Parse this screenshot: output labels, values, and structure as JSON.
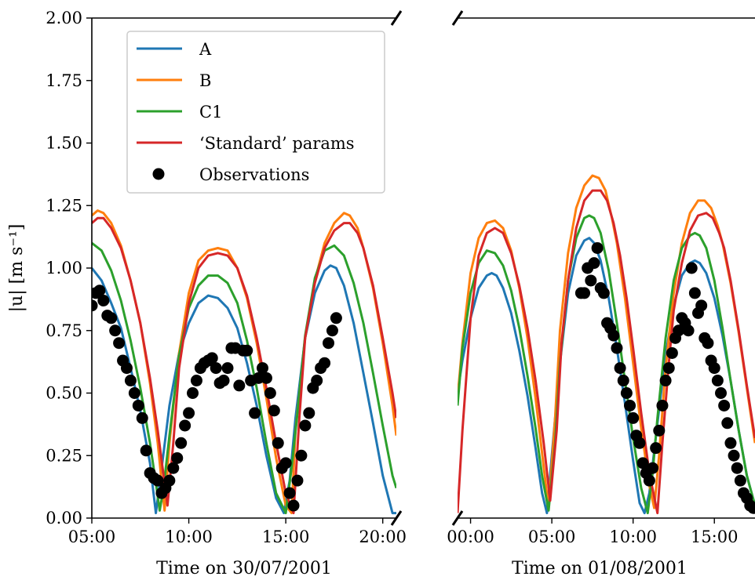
{
  "chart_data": [
    {
      "type": "line",
      "xlabel": "Time on 30/07/2001",
      "ylabel": "|u| [m s⁻¹]",
      "x_unit": "hours",
      "xlim": [
        5.0,
        20.7
      ],
      "ylim": [
        0.0,
        2.0
      ],
      "xticks": [
        5,
        10,
        15,
        20
      ],
      "xtick_labels": [
        "05:00",
        "10:00",
        "15:00",
        "20:00"
      ],
      "yticks": [
        0,
        0.25,
        0.5,
        0.75,
        1.0,
        1.25,
        1.5,
        1.75,
        2.0
      ],
      "ytick_labels": [
        "0.00",
        "0.25",
        "0.50",
        "0.75",
        "1.00",
        "1.25",
        "1.50",
        "1.75",
        "2.00"
      ],
      "grid": false,
      "legend": "top-left",
      "series": [
        {
          "name": "A",
          "color": "#1f77b4",
          "x": [
            5.0,
            5.5,
            6.0,
            6.5,
            7.0,
            7.5,
            8.0,
            8.3,
            8.6,
            9.0,
            9.5,
            10.0,
            10.5,
            11.0,
            11.5,
            12.0,
            12.5,
            13.0,
            13.5,
            14.0,
            14.5,
            14.9,
            15.2,
            15.5,
            16.0,
            16.5,
            17.0,
            17.3,
            17.6,
            18.0,
            18.5,
            19.0,
            19.5,
            20.0,
            20.5,
            20.7
          ],
          "y": [
            1.0,
            0.95,
            0.86,
            0.76,
            0.6,
            0.43,
            0.22,
            0.02,
            0.2,
            0.45,
            0.66,
            0.78,
            0.86,
            0.89,
            0.88,
            0.84,
            0.76,
            0.62,
            0.45,
            0.25,
            0.08,
            0.02,
            0.15,
            0.4,
            0.72,
            0.9,
            0.99,
            1.01,
            1.0,
            0.93,
            0.78,
            0.58,
            0.38,
            0.17,
            0.02,
            0.02
          ]
        },
        {
          "name": "B",
          "color": "#ff7f0e",
          "x": [
            5.0,
            5.3,
            5.6,
            6.0,
            6.5,
            7.0,
            7.5,
            8.0,
            8.4,
            8.75,
            9.0,
            9.5,
            10.0,
            10.5,
            11.0,
            11.5,
            12.0,
            12.5,
            13.0,
            13.5,
            14.0,
            14.5,
            15.0,
            15.3,
            15.5,
            16.0,
            16.5,
            17.0,
            17.5,
            18.0,
            18.3,
            18.7,
            19.0,
            19.5,
            20.0,
            20.5,
            20.7
          ],
          "y": [
            1.21,
            1.23,
            1.22,
            1.18,
            1.09,
            0.95,
            0.78,
            0.54,
            0.3,
            0.03,
            0.3,
            0.66,
            0.9,
            1.03,
            1.07,
            1.08,
            1.07,
            1.0,
            0.88,
            0.7,
            0.48,
            0.24,
            0.05,
            0.02,
            0.35,
            0.72,
            0.95,
            1.1,
            1.18,
            1.22,
            1.21,
            1.16,
            1.08,
            0.92,
            0.7,
            0.45,
            0.33
          ]
        },
        {
          "name": "C1",
          "color": "#2ca02c",
          "x": [
            5.0,
            5.5,
            6.0,
            6.5,
            7.0,
            7.5,
            8.0,
            8.3,
            8.5,
            8.7,
            9.0,
            9.5,
            10.0,
            10.5,
            11.0,
            11.5,
            12.0,
            12.5,
            13.0,
            13.5,
            14.0,
            14.5,
            15.0,
            15.3,
            15.6,
            16.0,
            16.5,
            17.0,
            17.5,
            18.0,
            18.5,
            19.0,
            19.5,
            20.0,
            20.5,
            20.7
          ],
          "y": [
            1.1,
            1.07,
            0.99,
            0.87,
            0.71,
            0.52,
            0.3,
            0.14,
            0.03,
            0.12,
            0.33,
            0.65,
            0.84,
            0.93,
            0.97,
            0.97,
            0.94,
            0.86,
            0.71,
            0.52,
            0.3,
            0.1,
            0.02,
            0.2,
            0.42,
            0.73,
            0.96,
            1.07,
            1.09,
            1.05,
            0.94,
            0.78,
            0.58,
            0.37,
            0.17,
            0.12
          ]
        },
        {
          "name": "‘Standard’ params",
          "color": "#d62728",
          "x": [
            5.0,
            5.3,
            5.6,
            6.0,
            6.5,
            7.0,
            7.5,
            8.0,
            8.4,
            8.9,
            9.2,
            9.5,
            10.0,
            10.5,
            11.0,
            11.5,
            12.0,
            12.5,
            13.0,
            13.5,
            14.0,
            14.5,
            15.0,
            15.4,
            15.7,
            16.0,
            16.5,
            17.0,
            17.5,
            18.0,
            18.3,
            18.7,
            19.0,
            19.5,
            20.0,
            20.5,
            20.7
          ],
          "y": [
            1.18,
            1.2,
            1.2,
            1.16,
            1.08,
            0.95,
            0.78,
            0.56,
            0.35,
            0.05,
            0.3,
            0.6,
            0.86,
            1.0,
            1.05,
            1.06,
            1.05,
            1.0,
            0.89,
            0.72,
            0.52,
            0.3,
            0.1,
            0.02,
            0.4,
            0.72,
            0.94,
            1.08,
            1.15,
            1.18,
            1.18,
            1.14,
            1.08,
            0.93,
            0.72,
            0.5,
            0.4
          ]
        },
        {
          "name": "Observations",
          "color": "#000000",
          "marker": "circle",
          "x": [
            5.0,
            5.2,
            5.4,
            5.6,
            5.8,
            6.0,
            6.2,
            6.4,
            6.6,
            6.8,
            7.0,
            7.2,
            7.4,
            7.6,
            7.8,
            8.0,
            8.2,
            8.4,
            8.6,
            8.8,
            9.0,
            9.2,
            9.4,
            9.6,
            9.8,
            10.0,
            10.2,
            10.4,
            10.6,
            10.8,
            11.0,
            11.2,
            11.4,
            11.6,
            11.8,
            12.0,
            12.2,
            12.4,
            12.6,
            12.8,
            13.0,
            13.2,
            13.4,
            13.6,
            13.8,
            14.0,
            14.2,
            14.4,
            14.6,
            14.8,
            15.0,
            15.2,
            15.4,
            15.6,
            15.8,
            16.0,
            16.2,
            16.4,
            16.6,
            16.8,
            17.0,
            17.2,
            17.4,
            17.6
          ],
          "y": [
            0.85,
            0.9,
            0.91,
            0.87,
            0.81,
            0.8,
            0.75,
            0.7,
            0.63,
            0.6,
            0.55,
            0.5,
            0.45,
            0.4,
            0.27,
            0.18,
            0.16,
            0.15,
            0.1,
            0.12,
            0.15,
            0.2,
            0.24,
            0.3,
            0.37,
            0.42,
            0.5,
            0.55,
            0.6,
            0.62,
            0.63,
            0.64,
            0.6,
            0.54,
            0.55,
            0.6,
            0.68,
            0.68,
            0.53,
            0.67,
            0.67,
            0.55,
            0.42,
            0.56,
            0.6,
            0.56,
            0.5,
            0.43,
            0.3,
            0.2,
            0.22,
            0.1,
            0.05,
            0.15,
            0.25,
            0.37,
            0.42,
            0.52,
            0.55,
            0.6,
            0.62,
            0.7,
            0.75,
            0.8
          ]
        }
      ]
    },
    {
      "type": "line",
      "xlabel": "Time on 01/08/2001",
      "ylabel": "",
      "x_unit": "hours",
      "xlim": [
        -0.8,
        17.5
      ],
      "ylim": [
        0.0,
        2.0
      ],
      "xticks": [
        0,
        5,
        10,
        15
      ],
      "xtick_labels": [
        "00:00",
        "05:00",
        "10:00",
        "15:00"
      ],
      "grid": false,
      "series": [
        {
          "name": "A",
          "color": "#1f77b4",
          "x": [
            -0.8,
            -0.5,
            0.0,
            0.5,
            1.0,
            1.3,
            1.6,
            2.0,
            2.5,
            3.0,
            3.5,
            4.0,
            4.4,
            4.7,
            5.0,
            5.5,
            6.0,
            6.5,
            7.0,
            7.3,
            7.6,
            8.0,
            8.5,
            9.0,
            9.5,
            10.0,
            10.4,
            10.7,
            11.0,
            11.5,
            12.0,
            12.5,
            13.0,
            13.5,
            13.8,
            14.1,
            14.5,
            15.0,
            15.5,
            16.0,
            16.5,
            17.0,
            17.5
          ],
          "y": [
            0.5,
            0.63,
            0.8,
            0.92,
            0.97,
            0.98,
            0.97,
            0.92,
            0.82,
            0.67,
            0.49,
            0.28,
            0.1,
            0.02,
            0.25,
            0.62,
            0.9,
            1.05,
            1.11,
            1.12,
            1.1,
            1.03,
            0.88,
            0.68,
            0.46,
            0.23,
            0.06,
            0.02,
            0.1,
            0.38,
            0.65,
            0.85,
            0.97,
            1.02,
            1.03,
            1.02,
            0.98,
            0.88,
            0.73,
            0.55,
            0.35,
            0.17,
            0.05
          ]
        },
        {
          "name": "B",
          "color": "#ff7f0e",
          "x": [
            -0.8,
            -0.5,
            0.0,
            0.5,
            1.0,
            1.5,
            2.0,
            2.5,
            3.0,
            3.5,
            4.0,
            4.4,
            4.8,
            5.2,
            5.5,
            6.0,
            6.5,
            7.0,
            7.5,
            7.9,
            8.3,
            8.7,
            9.0,
            9.5,
            10.0,
            10.5,
            11.0,
            11.3,
            11.6,
            12.0,
            12.5,
            13.0,
            13.5,
            14.0,
            14.4,
            14.8,
            15.2,
            15.5,
            16.0,
            16.5,
            17.0,
            17.5
          ],
          "y": [
            0.48,
            0.7,
            0.98,
            1.12,
            1.18,
            1.19,
            1.16,
            1.07,
            0.92,
            0.72,
            0.48,
            0.26,
            0.04,
            0.4,
            0.75,
            1.06,
            1.24,
            1.33,
            1.37,
            1.36,
            1.31,
            1.2,
            1.1,
            0.88,
            0.62,
            0.36,
            0.13,
            0.04,
            0.25,
            0.6,
            0.9,
            1.1,
            1.22,
            1.27,
            1.27,
            1.24,
            1.17,
            1.1,
            0.94,
            0.74,
            0.52,
            0.3
          ]
        },
        {
          "name": "C1",
          "color": "#2ca02c",
          "x": [
            -0.8,
            -0.5,
            0.0,
            0.5,
            1.0,
            1.5,
            2.0,
            2.5,
            3.0,
            3.5,
            4.0,
            4.4,
            4.8,
            5.2,
            5.5,
            6.0,
            6.5,
            7.0,
            7.3,
            7.6,
            8.0,
            8.5,
            9.0,
            9.5,
            10.0,
            10.5,
            10.9,
            11.2,
            11.5,
            12.0,
            12.5,
            13.0,
            13.5,
            13.8,
            14.1,
            14.5,
            15.0,
            15.5,
            16.0,
            16.5,
            17.0,
            17.5
          ],
          "y": [
            0.45,
            0.68,
            0.9,
            1.02,
            1.07,
            1.06,
            1.01,
            0.91,
            0.76,
            0.57,
            0.36,
            0.17,
            0.03,
            0.3,
            0.62,
            0.95,
            1.12,
            1.2,
            1.21,
            1.2,
            1.14,
            0.99,
            0.78,
            0.55,
            0.32,
            0.12,
            0.02,
            0.18,
            0.4,
            0.72,
            0.95,
            1.08,
            1.13,
            1.14,
            1.13,
            1.08,
            0.95,
            0.76,
            0.55,
            0.35,
            0.17,
            0.05
          ]
        },
        {
          "name": "‘Standard’ params",
          "color": "#d62728",
          "x": [
            -0.8,
            -0.5,
            0.0,
            0.5,
            1.0,
            1.5,
            2.0,
            2.5,
            3.0,
            3.5,
            4.0,
            4.5,
            4.9,
            5.3,
            5.6,
            6.0,
            6.5,
            7.0,
            7.5,
            8.0,
            8.4,
            8.8,
            9.2,
            9.6,
            10.0,
            10.5,
            11.0,
            11.5,
            11.8,
            12.2,
            12.5,
            13.0,
            13.5,
            14.0,
            14.5,
            14.9,
            15.3,
            15.6,
            16.0,
            16.5,
            17.0,
            17.5
          ],
          "y": [
            0.02,
            0.35,
            0.8,
            1.05,
            1.14,
            1.16,
            1.14,
            1.06,
            0.93,
            0.76,
            0.55,
            0.3,
            0.07,
            0.35,
            0.7,
            0.95,
            1.16,
            1.27,
            1.31,
            1.31,
            1.27,
            1.18,
            1.05,
            0.88,
            0.68,
            0.42,
            0.18,
            0.02,
            0.3,
            0.62,
            0.83,
            1.02,
            1.15,
            1.21,
            1.22,
            1.2,
            1.14,
            1.08,
            0.95,
            0.75,
            0.53,
            0.32
          ]
        },
        {
          "name": "Observations",
          "color": "#000000",
          "marker": "circle",
          "x": [
            6.8,
            7.0,
            7.2,
            7.4,
            7.6,
            7.8,
            8.0,
            8.2,
            8.4,
            8.6,
            8.8,
            9.0,
            9.2,
            9.4,
            9.6,
            9.8,
            10.0,
            10.2,
            10.4,
            10.6,
            10.8,
            11.0,
            11.2,
            11.4,
            11.6,
            11.8,
            12.0,
            12.2,
            12.4,
            12.6,
            12.8,
            13.0,
            13.2,
            13.4,
            13.6,
            13.8,
            14.0,
            14.2,
            14.4,
            14.6,
            14.8,
            15.0,
            15.2,
            15.4,
            15.6,
            15.8,
            16.0,
            16.2,
            16.4,
            16.6,
            16.8,
            17.0,
            17.2,
            17.4
          ],
          "y": [
            0.9,
            0.9,
            1.0,
            0.95,
            1.02,
            1.08,
            0.92,
            0.9,
            0.78,
            0.76,
            0.73,
            0.68,
            0.6,
            0.55,
            0.5,
            0.45,
            0.4,
            0.33,
            0.3,
            0.22,
            0.18,
            0.15,
            0.2,
            0.28,
            0.35,
            0.45,
            0.55,
            0.6,
            0.66,
            0.72,
            0.75,
            0.8,
            0.78,
            0.75,
            1.0,
            0.9,
            0.82,
            0.85,
            0.72,
            0.7,
            0.63,
            0.6,
            0.55,
            0.5,
            0.45,
            0.38,
            0.3,
            0.25,
            0.2,
            0.15,
            0.1,
            0.08,
            0.05,
            0.04
          ]
        }
      ]
    }
  ],
  "legend_items": [
    {
      "label": "A",
      "color": "#1f77b4",
      "kind": "line"
    },
    {
      "label": "B",
      "color": "#ff7f0e",
      "kind": "line"
    },
    {
      "label": "C1",
      "color": "#2ca02c",
      "kind": "line"
    },
    {
      "label": "‘Standard’ params",
      "color": "#d62728",
      "kind": "line"
    },
    {
      "label": "Observations",
      "color": "#000000",
      "kind": "marker"
    }
  ]
}
